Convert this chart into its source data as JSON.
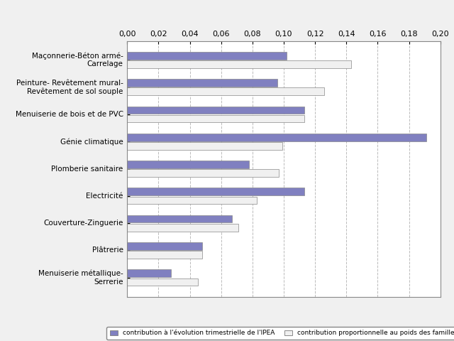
{
  "categories": [
    "Menuiserie métallique-\nSerrerie",
    "Plâtrerie",
    "Couverture-Zinguerie",
    "Electricité",
    "Plomberie sanitaire",
    "Génie climatique",
    "Menuiserie de bois et de PVC",
    "Peinture- Revêtement mural-\nRevêtement de sol souple",
    "Maçonnerie-Béton armé-\nCarrelage"
  ],
  "contribution_evolution": [
    0.028,
    0.048,
    0.067,
    0.113,
    0.078,
    0.191,
    0.113,
    0.096,
    0.102
  ],
  "contribution_proportionnelle": [
    0.045,
    0.048,
    0.071,
    0.083,
    0.097,
    0.099,
    0.113,
    0.126,
    0.143
  ],
  "bar_color_blue": "#8080C0",
  "bar_color_white": "#F0F0F0",
  "bar_edgecolor": "#888888",
  "xlim": [
    0,
    0.2
  ],
  "xticks": [
    0.0,
    0.02,
    0.04,
    0.06,
    0.08,
    0.1,
    0.12,
    0.14,
    0.16,
    0.18,
    0.2
  ],
  "xtick_labels": [
    "0,00",
    "0,02",
    "0,04",
    "0,06",
    "0,08",
    "0,10",
    "0,12",
    "0,14",
    "0,16",
    "0,18",
    "0,20"
  ],
  "legend_label1": "contribution à l'évolution trimestrielle de l'IPEA",
  "legend_label2": "contribution proportionnelle au poids des familles",
  "bg_color": "#FFFFFF",
  "grid_color": "#BBBBBB",
  "fig_bg": "#F0F0F0"
}
